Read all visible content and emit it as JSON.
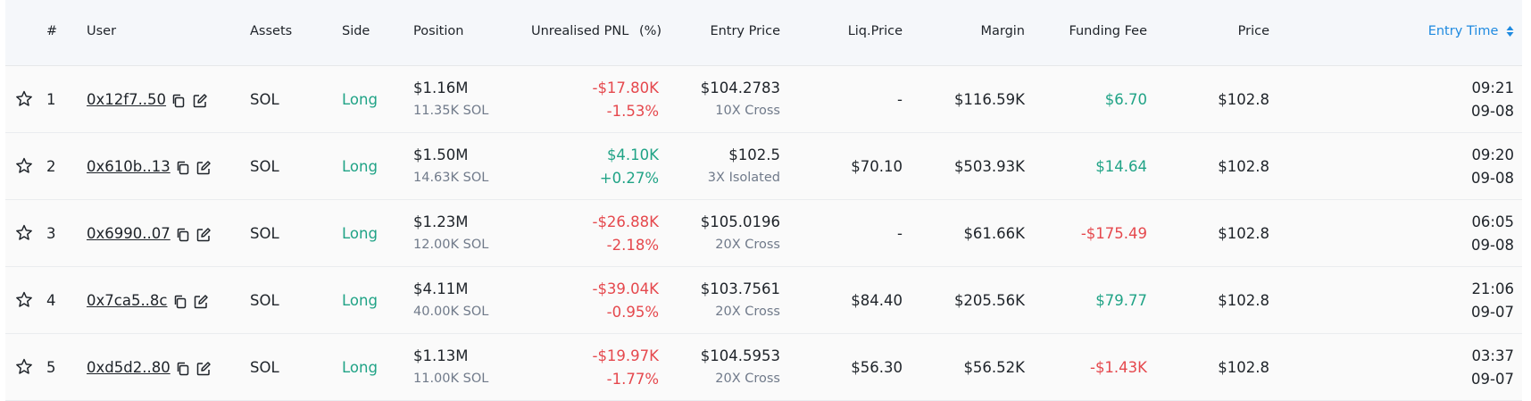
{
  "header": {
    "num": "#",
    "user": "User",
    "assets": "Assets",
    "side": "Side",
    "position": "Position",
    "pnl": "Unrealised PNL",
    "pct": "(%)",
    "entry_price": "Entry Price",
    "liq_price": "Liq.Price",
    "margin": "Margin",
    "funding_fee": "Funding Fee",
    "price": "Price",
    "entry_time": "Entry Time"
  },
  "colors": {
    "red": "#e5484d",
    "green": "#20a386",
    "blue": "#1e8ae0"
  },
  "rows": [
    {
      "num": "1",
      "user": "0x12f7..50",
      "asset": "SOL",
      "side": "Long",
      "position": "$1.16M",
      "position_sub": "11.35K SOL",
      "pnl": "-$17.80K",
      "pnl_pct": "-1.53%",
      "entry_price": "$104.2783",
      "leverage": "10X Cross",
      "liq_price": "-",
      "margin": "$116.59K",
      "funding_fee": "$6.70",
      "price": "$102.8",
      "time": "09:21",
      "date": "09-08"
    },
    {
      "num": "2",
      "user": "0x610b..13",
      "asset": "SOL",
      "side": "Long",
      "position": "$1.50M",
      "position_sub": "14.63K SOL",
      "pnl": "$4.10K",
      "pnl_pct": "+0.27%",
      "entry_price": "$102.5",
      "leverage": "3X Isolated",
      "liq_price": "$70.10",
      "margin": "$503.93K",
      "funding_fee": "$14.64",
      "price": "$102.8",
      "time": "09:20",
      "date": "09-08"
    },
    {
      "num": "3",
      "user": "0x6990..07",
      "asset": "SOL",
      "side": "Long",
      "position": "$1.23M",
      "position_sub": "12.00K SOL",
      "pnl": "-$26.88K",
      "pnl_pct": "-2.18%",
      "entry_price": "$105.0196",
      "leverage": "20X Cross",
      "liq_price": "-",
      "margin": "$61.66K",
      "funding_fee": "-$175.49",
      "price": "$102.8",
      "time": "06:05",
      "date": "09-08"
    },
    {
      "num": "4",
      "user": "0x7ca5..8c",
      "asset": "SOL",
      "side": "Long",
      "position": "$4.11M",
      "position_sub": "40.00K SOL",
      "pnl": "-$39.04K",
      "pnl_pct": "-0.95%",
      "entry_price": "$103.7561",
      "leverage": "20X Cross",
      "liq_price": "$84.40",
      "margin": "$205.56K",
      "funding_fee": "$79.77",
      "price": "$102.8",
      "time": "21:06",
      "date": "09-07"
    },
    {
      "num": "5",
      "user": "0xd5d2..80",
      "asset": "SOL",
      "side": "Long",
      "position": "$1.13M",
      "position_sub": "11.00K SOL",
      "pnl": "-$19.97K",
      "pnl_pct": "-1.77%",
      "entry_price": "$104.5953",
      "leverage": "20X Cross",
      "liq_price": "$56.30",
      "margin": "$56.52K",
      "funding_fee": "-$1.43K",
      "price": "$102.8",
      "time": "03:37",
      "date": "09-07"
    }
  ]
}
